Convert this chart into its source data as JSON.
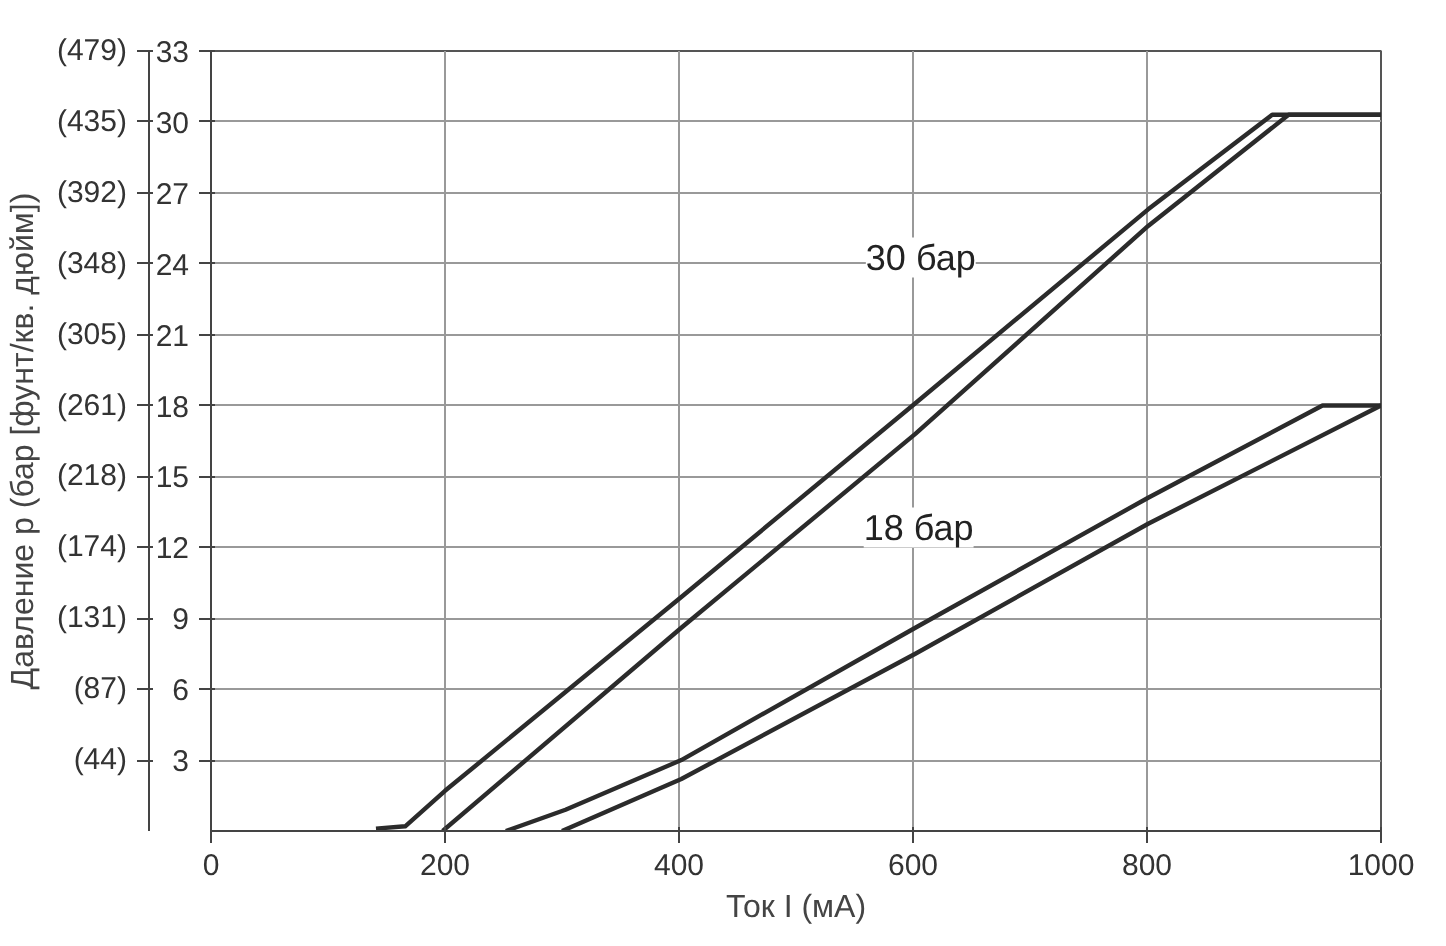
{
  "chart_data": {
    "type": "line",
    "xlabel": "Ток I (мА)",
    "y2label": "Давление p (бар [фунт/кв. дюйм])",
    "xlim": [
      0,
      1000
    ],
    "xticks": [
      0,
      200,
      400,
      600,
      800,
      1000
    ],
    "ylim": [
      0,
      33
    ],
    "yticks": [
      3,
      6,
      9,
      12,
      15,
      18,
      21,
      24,
      27,
      30,
      33
    ],
    "y2lim": [
      0,
      478.5
    ],
    "y2ticks": [
      {
        "value": 43.5,
        "label": "(44)"
      },
      {
        "value": 87,
        "label": "(87)"
      },
      {
        "value": 130.5,
        "label": "(131)"
      },
      {
        "value": 174,
        "label": "(174)"
      },
      {
        "value": 217.5,
        "label": "(218)"
      },
      {
        "value": 261,
        "label": "(261)"
      },
      {
        "value": 304.5,
        "label": "(305)"
      },
      {
        "value": 348,
        "label": "(348)"
      },
      {
        "value": 391.5,
        "label": "(392)"
      },
      {
        "value": 435,
        "label": "(435)"
      },
      {
        "value": 478.5,
        "label": "(479)"
      }
    ],
    "grid": true,
    "line_style": "solid",
    "marker": "none",
    "series": [
      {
        "color": "#2b2b2b",
        "x": [
          141,
          166,
          200,
          402,
          602,
          801,
          907,
          1000
        ],
        "values": [
          0.1,
          0.2,
          1.7,
          9.9,
          18.1,
          26.3,
          30.3,
          30.3
        ]
      },
      {
        "color": "#2b2b2b",
        "x": [
          198,
          402,
          602,
          801,
          921,
          1000
        ],
        "values": [
          0,
          8.6,
          16.8,
          25.6,
          30.3,
          30.3
        ]
      },
      {
        "color": "#2b2b2b",
        "x": [
          252,
          303,
          402,
          602,
          801,
          950,
          1000
        ],
        "values": [
          0,
          0.9,
          3.0,
          8.6,
          14.1,
          18.0,
          18.0
        ]
      },
      {
        "color": "#2b2b2b",
        "x": [
          300,
          402,
          602,
          801,
          1000
        ],
        "values": [
          0,
          2.2,
          7.5,
          13.0,
          18.0
        ]
      }
    ],
    "annotations": [
      "30 бар",
      "18 бар"
    ]
  }
}
